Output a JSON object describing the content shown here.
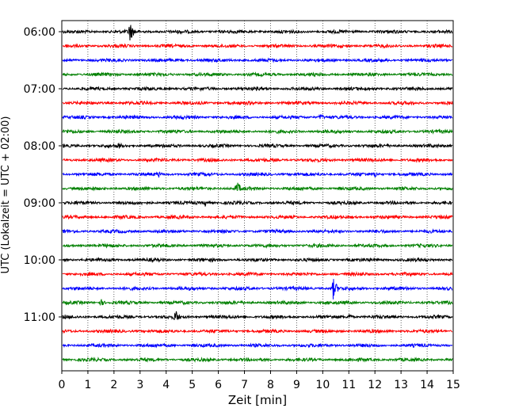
{
  "chart_data": {
    "type": "line",
    "subtype": "helicorder-seismogram",
    "title": "",
    "xlabel": "Zeit  [min]",
    "ylabel": "UTC (Lokalzeit = UTC + 02:00)",
    "xlim": [
      0,
      15
    ],
    "x_ticks": [
      0,
      1,
      2,
      3,
      4,
      5,
      6,
      7,
      8,
      9,
      10,
      11,
      12,
      13,
      14,
      15
    ],
    "x_grid": "dotted vertical lines at each minute",
    "y_tick_labels": [
      "06:00",
      "07:00",
      "08:00",
      "09:00",
      "10:00",
      "11:00"
    ],
    "trace_interval_min": 15,
    "trace_colors_cycle": [
      "#000000",
      "#ff0000",
      "#0000ff",
      "#008000"
    ],
    "traces": [
      {
        "start": "06:00",
        "color": "#000000",
        "events": [
          {
            "x": 2.6,
            "amplitude": "large"
          }
        ]
      },
      {
        "start": "06:15",
        "color": "#ff0000",
        "events": []
      },
      {
        "start": "06:30",
        "color": "#0000ff",
        "events": []
      },
      {
        "start": "06:45",
        "color": "#008000",
        "events": []
      },
      {
        "start": "07:00",
        "color": "#000000",
        "events": []
      },
      {
        "start": "07:15",
        "color": "#ff0000",
        "events": []
      },
      {
        "start": "07:30",
        "color": "#0000ff",
        "events": [
          {
            "x": 9.9,
            "amplitude": "small"
          }
        ]
      },
      {
        "start": "07:45",
        "color": "#008000",
        "events": []
      },
      {
        "start": "08:00",
        "color": "#000000",
        "events": [
          {
            "x": 2.2,
            "amplitude": "small"
          }
        ]
      },
      {
        "start": "08:15",
        "color": "#ff0000",
        "events": []
      },
      {
        "start": "08:30",
        "color": "#0000ff",
        "events": [
          {
            "x": 3.7,
            "amplitude": "small"
          },
          {
            "x": 12.0,
            "amplitude": "small"
          }
        ]
      },
      {
        "start": "08:45",
        "color": "#008000",
        "events": [
          {
            "x": 6.7,
            "amplitude": "medium"
          }
        ]
      },
      {
        "start": "09:00",
        "color": "#000000",
        "events": [
          {
            "x": 5.5,
            "amplitude": "small"
          }
        ]
      },
      {
        "start": "09:15",
        "color": "#ff0000",
        "events": []
      },
      {
        "start": "09:30",
        "color": "#0000ff",
        "events": []
      },
      {
        "start": "09:45",
        "color": "#008000",
        "events": []
      },
      {
        "start": "10:00",
        "color": "#000000",
        "events": []
      },
      {
        "start": "10:15",
        "color": "#ff0000",
        "events": []
      },
      {
        "start": "10:30",
        "color": "#0000ff",
        "events": [
          {
            "x": 10.4,
            "amplitude": "large"
          }
        ]
      },
      {
        "start": "10:45",
        "color": "#008000",
        "events": [
          {
            "x": 1.5,
            "amplitude": "small"
          }
        ]
      },
      {
        "start": "11:00",
        "color": "#000000",
        "events": [
          {
            "x": 4.35,
            "amplitude": "medium"
          },
          {
            "x": 11.0,
            "amplitude": "small"
          }
        ]
      },
      {
        "start": "11:15",
        "color": "#ff0000",
        "events": []
      },
      {
        "start": "11:30",
        "color": "#0000ff",
        "events": []
      },
      {
        "start": "11:45",
        "color": "#008000",
        "events": []
      }
    ]
  }
}
